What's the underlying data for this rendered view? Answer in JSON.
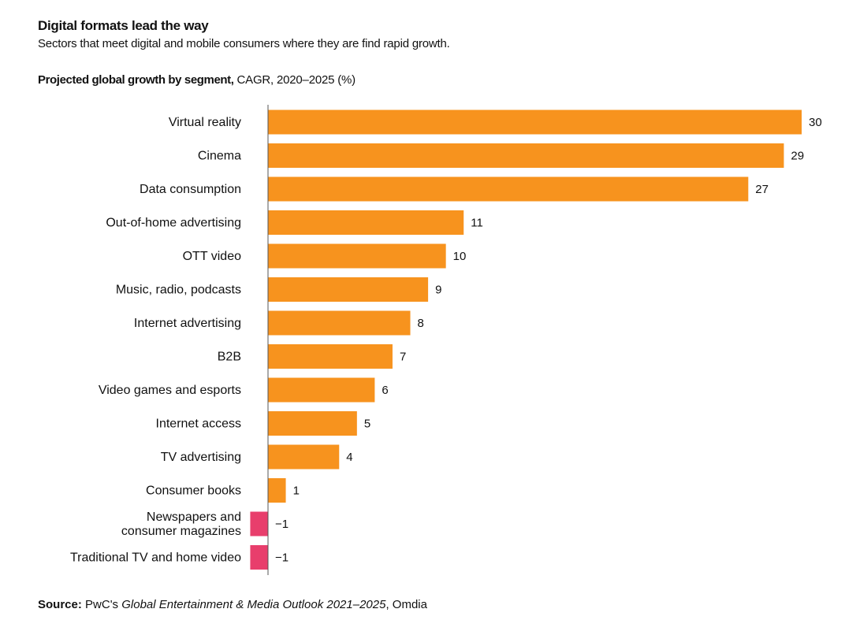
{
  "header": {
    "title": "Digital formats lead the way",
    "subtitle": "Sectors that meet digital and mobile consumers where they are find rapid growth.",
    "chart_heading_bold": "Projected global growth by segment,",
    "chart_heading_rest": " CAGR, 2020–2025 (%)"
  },
  "source": {
    "label": "Source:",
    "prefix": " PwC's ",
    "publication": "Global Entertainment & Media Outlook 2021–2025",
    "suffix": ", Omdia"
  },
  "colors": {
    "positive": "#F7931E",
    "negative": "#E83E6C",
    "axis": "#555555"
  },
  "chart_data": {
    "type": "bar",
    "orientation": "horizontal",
    "categories": [
      "Virtual reality",
      "Cinema",
      "Data consumption",
      "Out-of-home advertising",
      "OTT video",
      "Music, radio, podcasts",
      "Internet advertising",
      "B2B",
      "Video games and esports",
      "Internet access",
      "TV advertising",
      "Consumer books",
      "Newspapers and\nconsumer magazines",
      "Traditional TV and home video"
    ],
    "values": [
      30,
      29,
      27,
      11,
      10,
      9,
      8,
      7,
      6,
      5,
      4,
      1,
      -1,
      -1
    ],
    "value_labels": [
      "30",
      "29",
      "27",
      "11",
      "10",
      "9",
      "8",
      "7",
      "6",
      "5",
      "4",
      "1",
      "−1",
      "−1"
    ],
    "xlim": [
      -1,
      30
    ],
    "grid": false
  }
}
